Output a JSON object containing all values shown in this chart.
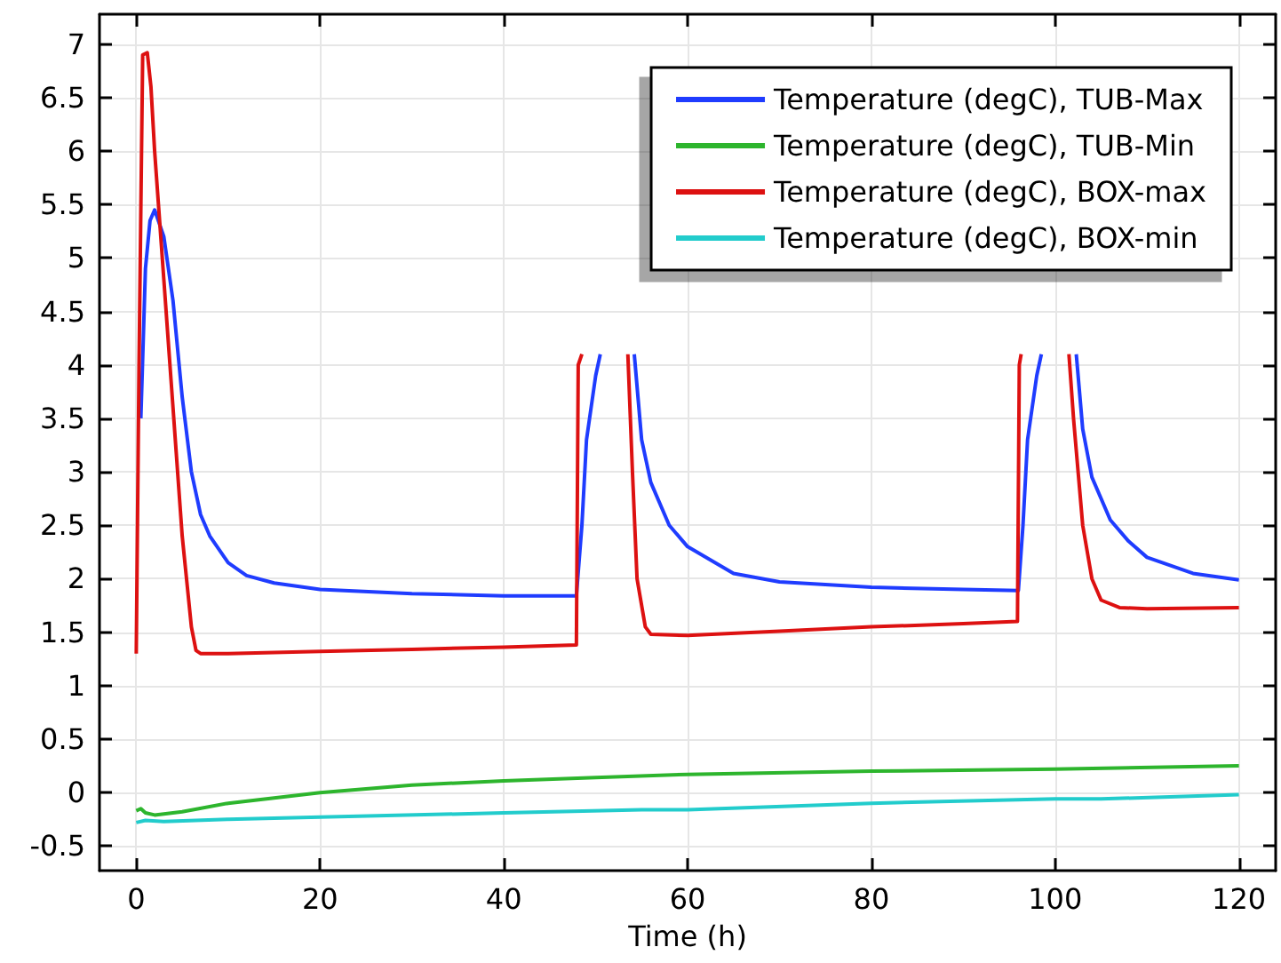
{
  "chart_data": {
    "type": "line",
    "xlabel": "Time (h)",
    "xlim": [
      -4,
      124
    ],
    "xticks": [
      0,
      20,
      40,
      60,
      80,
      100,
      120
    ],
    "ylim": [
      -0.73,
      7.28
    ],
    "yticks": [
      -0.5,
      0,
      0.5,
      1,
      1.5,
      2,
      2.5,
      3,
      3.5,
      4,
      4.5,
      5,
      5.5,
      6,
      6.5,
      7
    ],
    "grid": true,
    "legend": "top right",
    "marker": "none",
    "line_style": "solid",
    "series": [
      {
        "name": "Temperature (degC), TUB-Max",
        "color": "#1f3cff",
        "x": [
          0.5,
          1,
          1.5,
          2,
          3,
          4,
          5,
          6,
          7,
          8,
          10,
          12,
          15,
          20,
          30,
          40,
          47.9,
          48.5,
          49,
          50,
          50.5,
          52,
          54.2,
          55,
          56,
          58,
          60,
          65,
          70,
          80,
          90,
          96,
          96.5,
          97,
          98,
          98.5,
          100,
          102.3,
          103,
          104,
          106,
          108,
          110,
          115,
          120
        ],
        "values": [
          3.5,
          4.9,
          5.35,
          5.45,
          5.2,
          4.6,
          3.7,
          3.0,
          2.6,
          2.4,
          2.15,
          2.03,
          1.96,
          1.9,
          1.86,
          1.84,
          1.84,
          2.5,
          3.3,
          3.9,
          4.1,
          null,
          4.1,
          3.3,
          2.9,
          2.5,
          2.3,
          2.05,
          1.97,
          1.92,
          1.9,
          1.89,
          2.5,
          3.3,
          3.9,
          4.1,
          null,
          4.1,
          3.4,
          2.95,
          2.55,
          2.35,
          2.2,
          2.05,
          1.99
        ]
      },
      {
        "name": "Temperature (degC), TUB-Min",
        "color": "#2db52d",
        "x": [
          0,
          0.5,
          1,
          2,
          5,
          10,
          15,
          20,
          30,
          40,
          50,
          60,
          80,
          100,
          120
        ],
        "values": [
          -0.17,
          -0.15,
          -0.19,
          -0.21,
          -0.18,
          -0.1,
          -0.05,
          0,
          0.07,
          0.11,
          0.14,
          0.17,
          0.2,
          0.22,
          0.25
        ]
      },
      {
        "name": "Temperature (degC), BOX-max",
        "color": "#dd1111",
        "x": [
          0,
          0.3,
          0.7,
          1.2,
          1.6,
          2,
          3,
          4,
          5,
          6,
          6.5,
          7,
          10,
          20,
          30,
          40,
          47.9,
          48.1,
          48.5,
          51,
          53.5,
          54,
          54.5,
          55.4,
          56,
          60,
          70,
          80,
          90,
          95.9,
          96.1,
          96.3,
          99,
          101.5,
          102,
          103,
          104,
          105,
          107,
          110,
          120
        ],
        "values": [
          1.3,
          4.0,
          6.9,
          6.92,
          6.6,
          6.0,
          4.8,
          3.6,
          2.4,
          1.55,
          1.33,
          1.3,
          1.3,
          1.32,
          1.34,
          1.36,
          1.38,
          4.0,
          4.1,
          null,
          4.1,
          3.0,
          2.0,
          1.55,
          1.48,
          1.47,
          1.51,
          1.55,
          1.58,
          1.6,
          4.0,
          4.1,
          null,
          4.1,
          3.5,
          2.5,
          2.0,
          1.8,
          1.73,
          1.72,
          1.73
        ]
      },
      {
        "name": "Temperature (degC), BOX-min",
        "color": "#22cccc",
        "x": [
          0,
          1,
          3,
          10,
          20,
          40,
          55,
          60,
          80,
          100,
          105,
          120
        ],
        "values": [
          -0.28,
          -0.26,
          -0.27,
          -0.25,
          -0.23,
          -0.19,
          -0.16,
          -0.16,
          -0.1,
          -0.06,
          -0.06,
          -0.02
        ]
      }
    ]
  }
}
